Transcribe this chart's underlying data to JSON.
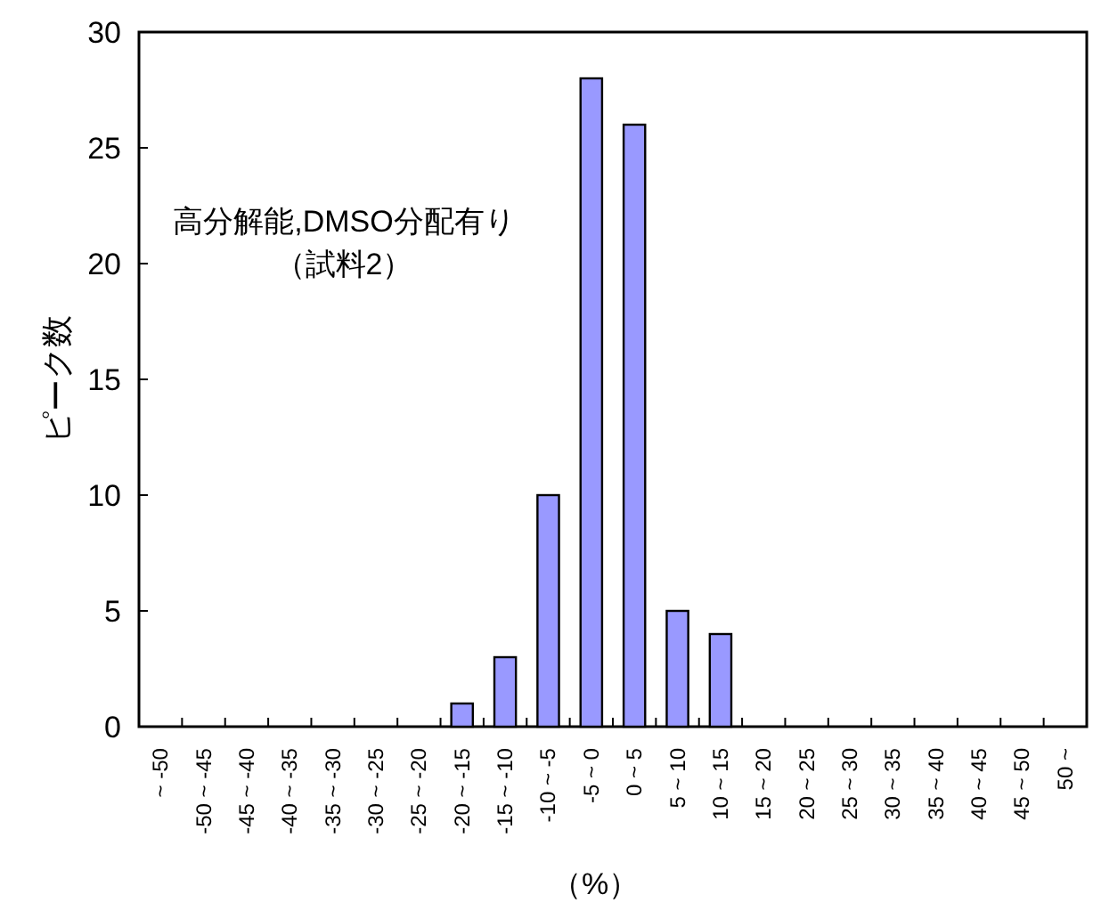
{
  "chart_data": {
    "type": "bar",
    "ylabel": "ピーク数",
    "xlabel": "（%）",
    "annotations": [
      "高分解能,DMSO分配有り",
      "（試料2）"
    ],
    "categories": [
      "~ -50",
      "-50 ~ -45",
      "-45 ~ -40",
      "-40 ~ -35",
      "-35 ~ -30",
      "-30 ~ -25",
      "-25 ~ -20",
      "-20 ~ -15",
      "-15 ~ -10",
      "-10 ~ -5",
      "-5 ~ 0",
      "0 ~ 5",
      "5 ~ 10",
      "10 ~ 15",
      "15 ~ 20",
      "20 ~ 25",
      "25 ~ 30",
      "30 ~ 35",
      "35 ~ 40",
      "40 ~ 45",
      "45 ~ 50",
      "50 ~"
    ],
    "values": [
      0,
      0,
      0,
      0,
      0,
      0,
      0,
      1,
      3,
      10,
      28,
      26,
      5,
      4,
      0,
      0,
      0,
      0,
      0,
      0,
      0,
      0
    ],
    "color": "#9999ff",
    "ylim": [
      0,
      30
    ],
    "yticks": [
      0,
      5,
      10,
      15,
      20,
      25,
      30
    ],
    "grid": false
  }
}
